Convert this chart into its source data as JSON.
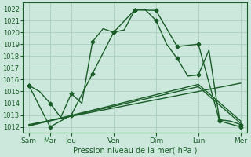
{
  "bg_color": "#cce8dc",
  "grid_color": "#aacfbe",
  "line_color": "#1a5c28",
  "xlabel_text": "Pression niveau de la mer( hPa )",
  "ylim": [
    1011.5,
    1022.5
  ],
  "yticks": [
    1012,
    1013,
    1014,
    1015,
    1016,
    1017,
    1018,
    1019,
    1020,
    1021,
    1022
  ],
  "xtick_labels": [
    "Sam",
    "Mar",
    "Jeu",
    "Ven",
    "Dim",
    "Lun",
    "Mer"
  ],
  "xtick_positions": [
    0,
    1,
    2,
    4,
    6,
    8,
    10
  ],
  "line1_x": [
    0,
    0.5,
    1,
    1.5,
    2,
    2.5,
    3,
    3.5,
    4,
    4.5,
    5,
    5.5,
    6,
    6.5,
    7,
    7.5,
    8,
    8.5,
    9,
    9.5,
    10
  ],
  "line1_y": [
    1015.5,
    1015.0,
    1014.0,
    1012.8,
    1014.8,
    1014.0,
    1019.2,
    1020.3,
    1020.0,
    1020.2,
    1021.9,
    1021.9,
    1021.0,
    1019.0,
    1017.8,
    1016.3,
    1016.4,
    1018.5,
    1012.6,
    1012.5,
    1012.2
  ],
  "line1_markers_x": [
    0,
    1,
    2,
    3,
    4,
    5,
    6,
    7,
    8,
    9,
    10
  ],
  "line1_markers_y": [
    1015.5,
    1014.0,
    1014.8,
    1019.2,
    1020.0,
    1021.9,
    1021.0,
    1017.8,
    1016.4,
    1012.6,
    1012.2
  ],
  "line2_x": [
    0,
    1,
    2,
    3,
    4,
    5,
    6,
    7,
    8,
    9,
    10
  ],
  "line2_y": [
    1015.5,
    1012.0,
    1013.0,
    1016.5,
    1020.0,
    1021.9,
    1021.85,
    1018.8,
    1019.0,
    1012.5,
    1012.0
  ],
  "line3_x": [
    0,
    10
  ],
  "line3_y": [
    1012.2,
    1015.7
  ],
  "line4_x": [
    0,
    8,
    10
  ],
  "line4_y": [
    1012.1,
    1015.6,
    1012.5
  ],
  "line5_x": [
    0,
    8,
    10
  ],
  "line5_y": [
    1012.1,
    1015.4,
    1012.3
  ],
  "marker_size": 2.5,
  "linewidth": 1.0,
  "ytick_fontsize": 6,
  "xtick_fontsize": 6.5,
  "xlabel_fontsize": 7
}
